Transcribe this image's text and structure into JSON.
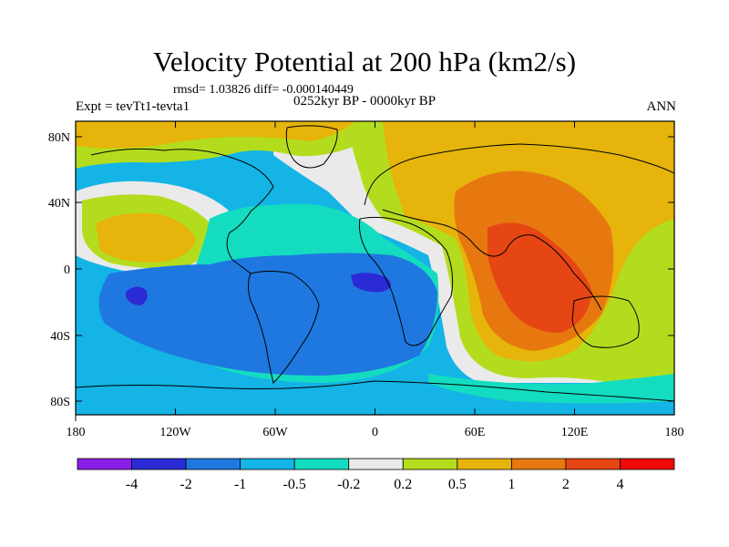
{
  "header": {
    "title": "Velocity Potential at 200 hPa (km2/s)",
    "stats": "rmsd= 1.03826 diff= -0.000140449",
    "experiment": "Expt = tevTt1-tevta1",
    "period": "0252kyr BP - 0000kyr BP",
    "season": "ANN"
  },
  "axes": {
    "lat_labels": [
      "80N",
      "40N",
      "0",
      "40S",
      "80S"
    ],
    "lon_labels": [
      "180",
      "120W",
      "60W",
      "0",
      "60E",
      "120E",
      "180"
    ]
  },
  "colorbar": {
    "labels": [
      "-4",
      "-2",
      "-1",
      "-0.5",
      "-0.2",
      "0.2",
      "0.5",
      "1",
      "2",
      "4"
    ],
    "colors": [
      "#8a1ee8",
      "#2b2bd6",
      "#1e78e0",
      "#14b4e6",
      "#14dcc0",
      "#eaeaea",
      "#b4dc1e",
      "#e6b40a",
      "#e6780f",
      "#e64614",
      "#f00a0a"
    ]
  },
  "map": {
    "fill_colors": {
      "base_mid": "#14b4e6",
      "neg_1": "#1e78e0",
      "neg_2": "#2b2bd6",
      "neutral": "#eaeaea",
      "pos_small": "#b4dc1e",
      "pos_mid": "#e6b40a",
      "pos_large": "#e6780f",
      "pos_max": "#e64614",
      "neg_small": "#14dcc0"
    }
  }
}
